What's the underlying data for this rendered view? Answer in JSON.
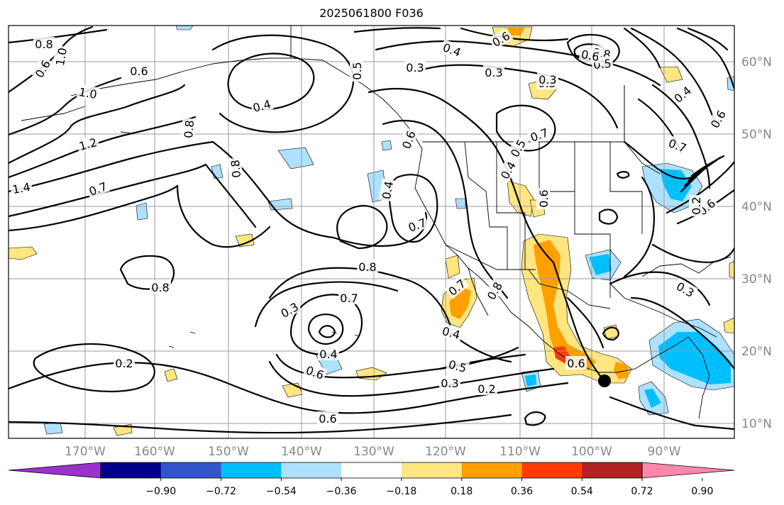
{
  "title": "2025061800 F036",
  "latitudes": [
    "60°N",
    "50°N",
    "40°N",
    "30°N",
    "20°N",
    "10°N"
  ],
  "longitudes": [
    "170°W",
    "160°W",
    "150°W",
    "140°W",
    "130°W",
    "120°W",
    "110°W",
    "100°W",
    "90°W"
  ],
  "colorbar": {
    "colors": [
      "#9933cc",
      "#000088",
      "#3355cc",
      "#00bfff",
      "#aee1ff",
      "#ffffff",
      "#ffe680",
      "#ffa000",
      "#ff3c00",
      "#b22222",
      "#ff88aa"
    ],
    "tick_labels": [
      "−0.90",
      "−0.72",
      "−0.54",
      "−0.36",
      "−0.18",
      "0.18",
      "0.36",
      "0.54",
      "0.72",
      "0.90"
    ]
  },
  "contour_labels": [
    "0.8",
    "1.0",
    "0.6",
    "0.6",
    "1.0",
    "1.2",
    "1.4",
    "0.7",
    "0.8",
    "0.8",
    "0.4",
    "0.5",
    "0.3",
    "0.4",
    "0.6",
    "0.3",
    "0.3",
    "0.8",
    "0.5",
    "0.4",
    "0.7",
    "0.6",
    "0.5",
    "0.4",
    "0.6",
    "0.7",
    "0.4",
    "0.7",
    "0.8",
    "0.8",
    "0.3",
    "0.7",
    "0.4",
    "0.7",
    "0.8",
    "0.4",
    "0.3",
    "0.6",
    "0.6",
    "0.5",
    "0.3",
    "0.2",
    "0.2",
    "0.6",
    "0.3",
    "0.6",
    "0.6",
    "0.2",
    "0.6"
  ],
  "marker": "storm-center"
}
